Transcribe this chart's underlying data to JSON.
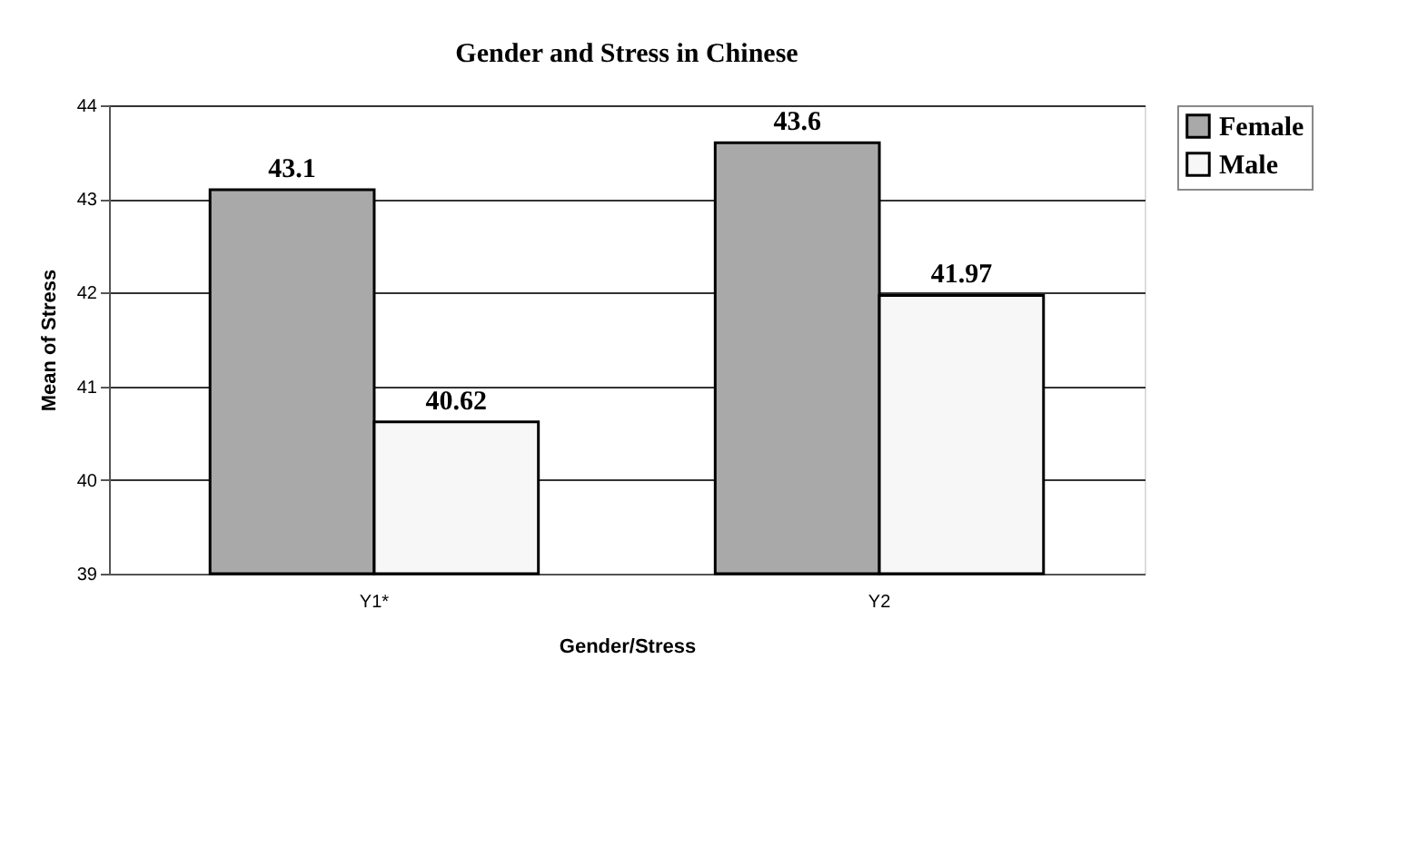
{
  "chart_data": {
    "type": "bar",
    "title": "Gender and Stress in Chinese",
    "xlabel": "Gender/Stress",
    "ylabel": "Mean of Stress",
    "categories": [
      "Y1*",
      "Y2"
    ],
    "series": [
      {
        "name": "Female",
        "color": "#a9a9a9",
        "values": [
          43.1,
          43.6
        ]
      },
      {
        "name": "Male",
        "color": "#f7f7f7",
        "values": [
          40.62,
          41.97
        ]
      }
    ],
    "ylim": [
      39,
      44
    ],
    "yticks": [
      39,
      40,
      41,
      42,
      43,
      44
    ],
    "grid": "y",
    "legend": "right",
    "data_labels": true
  }
}
